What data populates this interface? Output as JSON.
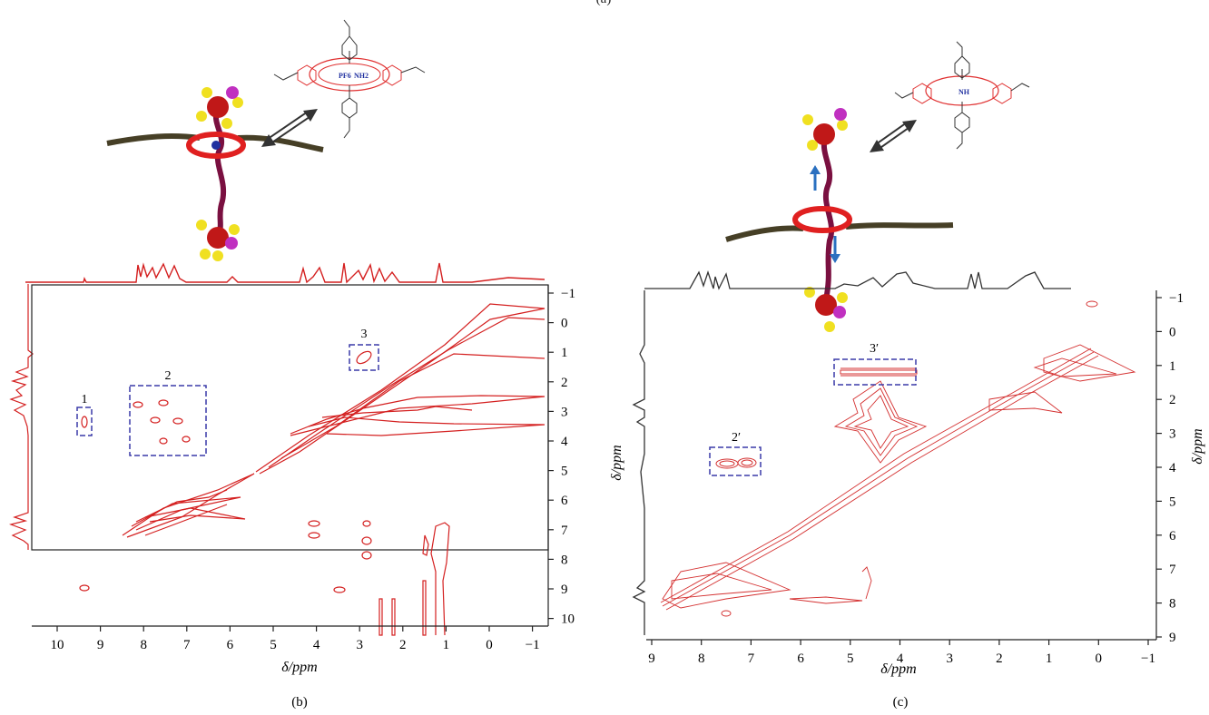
{
  "top_caption": "(a)",
  "panel_b": {
    "caption": "(b)",
    "xlabel": "δ/ppm",
    "x_ticks": [
      "10",
      "9",
      "8",
      "7",
      "6",
      "5",
      "4",
      "3",
      "2",
      "1",
      "0",
      "−1"
    ],
    "y_ticks": [
      "−1",
      "0",
      "1",
      "2",
      "3",
      "4",
      "5",
      "6",
      "7",
      "8",
      "9",
      "10"
    ],
    "region_labels": [
      "1",
      "2",
      "3"
    ],
    "schematic": {
      "anion_label": "PF6",
      "ammonium_label": "NH2"
    }
  },
  "panel_c": {
    "caption": "(c)",
    "xlabel": "δ/ppm",
    "ylabel": "δ/ppm",
    "ylabel_right": "δ/ppm",
    "x_ticks": [
      "9",
      "8",
      "7",
      "6",
      "5",
      "4",
      "3",
      "2",
      "1",
      "0",
      "−1"
    ],
    "y_ticks": [
      "−1",
      "0",
      "1",
      "2",
      "3",
      "4",
      "5",
      "6",
      "7",
      "8",
      "9"
    ],
    "region_labels": [
      "2′",
      "3′"
    ],
    "schematic": {
      "ammonium_label": "NH"
    }
  },
  "colors": {
    "contour_b": "#d42020",
    "contour_c": "#d43030",
    "box": "#3a3aa8",
    "axis": "#222222",
    "proj_c": "#333333",
    "polymer": "#463f26",
    "ring": "#e02020"
  }
}
